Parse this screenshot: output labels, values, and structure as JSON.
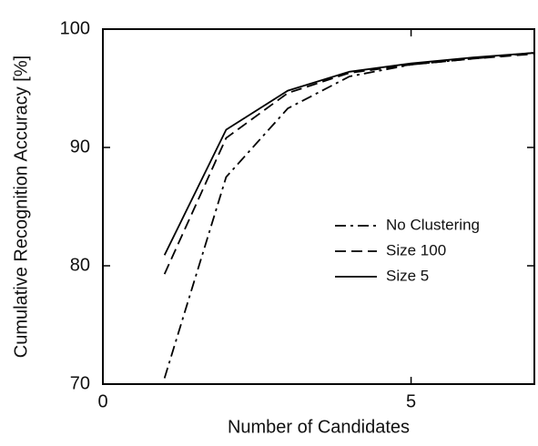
{
  "chart_data": {
    "type": "line",
    "xlabel": "Number of Candidates",
    "ylabel": "Cumulative Recognition Accuracy [%]",
    "x": [
      1,
      2,
      3,
      4,
      5,
      6,
      7
    ],
    "series": [
      {
        "name": "No Clustering",
        "color": "#000000",
        "dash": "dashdot",
        "values": [
          70.5,
          87.5,
          93.3,
          96.0,
          97.0,
          97.5,
          98.0
        ]
      },
      {
        "name": "Size 100",
        "color": "#000000",
        "dash": "dashed",
        "values": [
          79.3,
          90.8,
          94.6,
          96.3,
          97.0,
          97.5,
          97.9
        ]
      },
      {
        "name": "Size 5",
        "color": "#000000",
        "dash": "solid",
        "values": [
          80.9,
          91.5,
          94.8,
          96.4,
          97.1,
          97.6,
          98.0
        ]
      }
    ],
    "xlim": [
      0,
      7
    ],
    "xticks": [
      0,
      5
    ],
    "ylim": [
      70,
      100
    ],
    "yticks": [
      70,
      80,
      90,
      100
    ],
    "legend": "right",
    "grid": false
  }
}
